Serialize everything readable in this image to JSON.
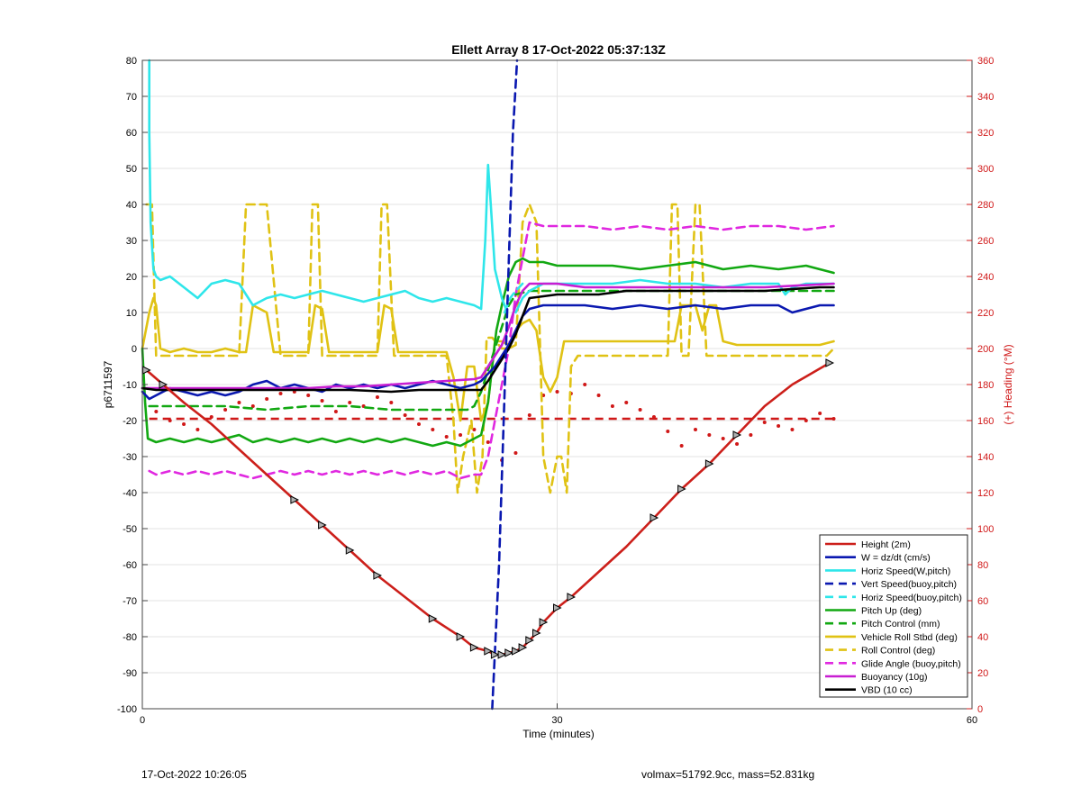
{
  "chart_data": {
    "type": "line",
    "title": "Ellett Array 8 17-Oct-2022 05:37:13Z",
    "xlabel": "Time (minutes)",
    "ylabel_left": "p6711597",
    "ylabel_right": "(+) Heading (°M)",
    "xlim": [
      0,
      60
    ],
    "ylim_left": [
      -100,
      80
    ],
    "ylim_right": [
      0,
      360
    ],
    "xticks": [
      0,
      30,
      60
    ],
    "yticks_left": [
      -100,
      -90,
      -80,
      -70,
      -60,
      -50,
      -40,
      -30,
      -20,
      -10,
      0,
      10,
      20,
      30,
      40,
      50,
      60,
      70,
      80
    ],
    "yticks_right": [
      0,
      20,
      40,
      60,
      80,
      100,
      120,
      140,
      160,
      180,
      200,
      220,
      240,
      260,
      280,
      300,
      320,
      340,
      360
    ],
    "grid_x": [
      30
    ],
    "grid_y": "major",
    "legend_position": "bottom-right",
    "colors": {
      "height": "#cc1f1a",
      "w": "#0a18b0",
      "horiz": "#2fe6ea",
      "pitch": "#12a812",
      "roll": "#e0c214",
      "glide": "#e028e0",
      "buoy": "#c81ed2",
      "vbd": "#000000",
      "heading": "#d01818",
      "right_axis": "#d01818"
    },
    "series": [
      {
        "name": "Height (2m)",
        "key": "height",
        "style": "solid",
        "markers": "triangle",
        "x": [
          0.3,
          1.5,
          3,
          5,
          7,
          9,
          11,
          13,
          15,
          17,
          19,
          21,
          23,
          24,
          25,
          25.5,
          26,
          26.5,
          27,
          27.5,
          28,
          28.5,
          29,
          30,
          31,
          33,
          35,
          37,
          39,
          41,
          43,
          45,
          47,
          49.7
        ],
        "y": [
          -6,
          -10,
          -15,
          -21,
          -28,
          -35,
          -42,
          -49,
          -56,
          -63,
          -69,
          -75,
          -80,
          -83,
          -84,
          -85,
          -85,
          -84.5,
          -84,
          -83,
          -81,
          -79,
          -76,
          -72,
          -69,
          -62,
          -55,
          -47,
          -39,
          -32,
          -24,
          -16,
          -10,
          -4
        ]
      },
      {
        "name": "W = dz/dt (cm/s)",
        "key": "w",
        "style": "solid",
        "x": [
          0,
          0.5,
          1,
          2,
          3,
          4,
          5,
          6,
          7,
          8,
          9,
          10,
          11,
          12,
          13,
          14,
          15,
          16,
          17,
          18,
          19,
          20,
          21,
          22,
          23,
          24,
          24.5,
          25,
          25.5,
          26,
          26.5,
          27,
          27.5,
          28,
          29,
          30,
          32,
          34,
          36,
          38,
          40,
          42,
          44,
          46,
          47,
          48,
          49,
          50
        ],
        "y": [
          -12,
          -14,
          -13,
          -11,
          -12,
          -13,
          -12,
          -13,
          -12,
          -10,
          -9,
          -11,
          -10,
          -11,
          -12,
          -10,
          -11,
          -10,
          -11,
          -10,
          -11,
          -10,
          -9,
          -10,
          -11,
          -10,
          -9,
          -7,
          -5,
          -2,
          1,
          5,
          9,
          11,
          12,
          12,
          12,
          11,
          12,
          11,
          12,
          11,
          12,
          12,
          10,
          11,
          12,
          12
        ]
      },
      {
        "name": "Horiz Speed(W,pitch)",
        "key": "horiz",
        "style": "solid",
        "x": [
          0.5,
          0.5,
          0.6,
          0.8,
          1,
          1.3,
          2,
          3,
          4,
          5,
          6,
          7,
          8,
          9,
          10,
          11,
          12,
          13,
          14,
          15,
          16,
          17,
          18,
          19,
          20,
          21,
          22,
          23,
          24,
          24.5,
          24.8,
          25,
          25.2,
          25.5,
          26,
          26.3
        ],
        "y": [
          80,
          60,
          35,
          22,
          20,
          19,
          20,
          17,
          14,
          18,
          19,
          18,
          12,
          14,
          15,
          14,
          15,
          16,
          15,
          14,
          13,
          14,
          15,
          16,
          14,
          13,
          14,
          13,
          12,
          11,
          30,
          51,
          40,
          22,
          14,
          11
        ],
        "seg2_x": [
          27,
          27.5,
          28,
          29,
          30,
          32,
          34,
          36,
          38,
          40,
          42,
          44,
          45,
          46,
          46.5,
          47,
          48,
          49,
          50
        ],
        "seg2_y": [
          10,
          14,
          16,
          18,
          18,
          18,
          18,
          19,
          18,
          18,
          17,
          18,
          18,
          18,
          15,
          17,
          18,
          18,
          18
        ]
      },
      {
        "name": "Vert Speed(buoy,pitch)",
        "key": "w",
        "style": "dashed",
        "x": [
          25.3,
          25.8,
          26.3,
          26.8,
          27.1
        ],
        "y": [
          -100,
          -60,
          0,
          60,
          80
        ]
      },
      {
        "name": "Horiz Speed(buoy,pitch)",
        "key": "horiz",
        "style": "dashed",
        "x": [
          26.2,
          26.6,
          27,
          27.5
        ],
        "y": [
          10,
          14,
          16,
          18
        ]
      },
      {
        "name": "Pitch Up (deg)",
        "key": "pitch",
        "style": "solid",
        "x": [
          0,
          0.2,
          0.4,
          1,
          2,
          3,
          4,
          5,
          6,
          7,
          8,
          9,
          10,
          11,
          12,
          13,
          14,
          15,
          16,
          17,
          18,
          19,
          20,
          21,
          22,
          23,
          24,
          24.5,
          25,
          25.3,
          25.6,
          26,
          26.5,
          27,
          27.5,
          28,
          29,
          30,
          32,
          34,
          36,
          38,
          40,
          42,
          44,
          46,
          48,
          49,
          50
        ],
        "y": [
          0,
          -15,
          -25,
          -26,
          -25,
          -26,
          -25,
          -26,
          -25,
          -24,
          -26,
          -25,
          -26,
          -25,
          -26,
          -25,
          -26,
          -25,
          -26,
          -25,
          -26,
          -25,
          -26,
          -27,
          -26,
          -27,
          -25,
          -24,
          -15,
          -5,
          5,
          12,
          20,
          24,
          25,
          24,
          24,
          23,
          23,
          23,
          22,
          23,
          24,
          22,
          23,
          22,
          23,
          22,
          21
        ]
      },
      {
        "name": "Pitch Control (mm)",
        "key": "pitch",
        "style": "dashed",
        "x": [
          0.5,
          3,
          6,
          9,
          12,
          15,
          18,
          21,
          23.5,
          24,
          24.5,
          25,
          25.5,
          26,
          26.5,
          27,
          28,
          30,
          35,
          40,
          45,
          50
        ],
        "y": [
          -16,
          -16,
          -16,
          -17,
          -16,
          -16,
          -17,
          -17,
          -17,
          -16,
          -12,
          -6,
          0,
          6,
          12,
          15,
          16,
          16,
          16,
          16,
          16,
          16
        ]
      },
      {
        "name": "Vehicle Roll Stbd (deg)",
        "key": "roll",
        "style": "solid",
        "x": [
          0,
          0.5,
          0.8,
          1,
          1.3,
          2,
          3,
          4,
          5,
          6,
          7,
          7.5,
          8,
          8.5,
          9,
          9.5,
          10,
          10.5,
          11,
          12,
          12.5,
          13,
          13.5,
          14,
          15,
          16,
          17,
          17.5,
          18,
          18.5,
          19,
          20,
          21,
          22,
          22.5,
          23,
          23.5,
          24,
          24.5,
          25,
          25.5,
          26,
          26.5,
          27,
          27.5,
          28,
          28.5,
          29,
          29.5,
          30,
          30.5,
          31,
          32,
          34,
          36,
          38,
          38.5,
          39,
          39.5,
          40,
          40.5,
          41,
          41.5,
          42,
          43,
          45,
          47,
          49,
          50
        ],
        "y": [
          0,
          10,
          14,
          12,
          0,
          -1,
          0,
          -1,
          -1,
          0,
          -1,
          -1,
          12,
          11,
          10,
          -1,
          -1,
          -1,
          -1,
          -1,
          12,
          11,
          -1,
          -1,
          -1,
          -1,
          -1,
          12,
          11,
          -1,
          -1,
          -1,
          -1,
          -1,
          -8,
          -20,
          -5,
          -5,
          -20,
          -15,
          2,
          2,
          1,
          5,
          7,
          8,
          5,
          -8,
          -12,
          -8,
          2,
          2,
          2,
          2,
          2,
          2,
          2,
          12,
          12,
          12,
          5,
          12,
          12,
          2,
          1,
          1,
          1,
          1,
          2
        ]
      },
      {
        "name": "Roll Control (deg)",
        "key": "roll",
        "style": "dashed",
        "x": [
          0.3,
          0.7,
          1,
          1.3,
          1.7,
          2,
          5,
          7,
          7.5,
          8,
          9,
          10,
          11,
          12,
          12.3,
          12.7,
          13,
          15,
          17,
          17.3,
          17.7,
          18.2,
          19,
          21,
          22,
          22.5,
          22.8,
          23.2,
          23.8,
          24.2,
          24.6,
          24.9,
          25.3,
          26,
          26.5,
          27,
          27.5,
          28,
          28.5,
          29,
          29.5,
          30,
          30.3,
          30.7,
          31,
          31.5,
          32,
          35,
          38,
          38.3,
          38.7,
          39,
          39.5,
          40,
          40.3,
          40.8,
          41.2,
          41.5,
          42,
          45,
          48,
          49.5,
          50
        ],
        "y": [
          40,
          40,
          -2,
          -2,
          -2,
          -2,
          -2,
          -2,
          40,
          40,
          40,
          -2,
          -2,
          -2,
          40,
          40,
          -2,
          -2,
          -2,
          40,
          40,
          -2,
          -2,
          -2,
          -2,
          -20,
          -40,
          -30,
          -20,
          -40,
          -30,
          3,
          3,
          0,
          0,
          1,
          35,
          40,
          35,
          -30,
          -40,
          -30,
          -30,
          -40,
          -5,
          -2,
          -2,
          -2,
          -2,
          40,
          40,
          -2,
          -2,
          40,
          40,
          -2,
          -2,
          -2,
          -2,
          -2,
          -2,
          -2,
          0
        ]
      },
      {
        "name": "Glide Angle (buoy,pitch)",
        "key": "glide",
        "style": "dashed",
        "x": [
          0.5,
          1,
          2,
          3,
          4,
          5,
          6,
          7,
          8,
          9,
          10,
          11,
          12,
          13,
          14,
          15,
          16,
          17,
          18,
          19,
          20,
          21,
          22,
          23,
          24,
          24.5,
          25,
          25.5,
          26,
          26.5,
          27,
          27.5,
          28,
          29,
          30,
          32,
          34,
          36,
          38,
          40,
          42,
          44,
          46,
          48,
          50
        ],
        "y": [
          -34,
          -35,
          -34,
          -35,
          -34,
          -35,
          -34,
          -35,
          -36,
          -35,
          -34,
          -35,
          -34,
          -35,
          -34,
          -35,
          -34,
          -35,
          -34,
          -35,
          -34,
          -35,
          -34,
          -36,
          -35,
          -35,
          -30,
          -20,
          -10,
          0,
          15,
          25,
          35,
          34,
          34,
          34,
          33,
          34,
          33,
          34,
          33,
          34,
          34,
          33,
          34
        ]
      },
      {
        "name": "Buoyancy (10g)",
        "key": "buoy",
        "style": "solid",
        "x": [
          0,
          2,
          4,
          6,
          8,
          10,
          12,
          14,
          16,
          18,
          20,
          22,
          24,
          24.5,
          25,
          25.5,
          26,
          26.5,
          27,
          27.5,
          28,
          29,
          30,
          32,
          35,
          40,
          45,
          50
        ],
        "y": [
          -11,
          -11,
          -11,
          -11,
          -11,
          -11,
          -11,
          -10.5,
          -10.5,
          -10,
          -9.5,
          -9,
          -8.5,
          -8,
          -5,
          -2,
          1,
          6,
          12,
          16,
          18,
          18,
          18,
          17,
          17,
          17,
          17,
          18
        ]
      },
      {
        "name": "VBD (10 cc)",
        "key": "vbd",
        "style": "solid",
        "x": [
          0,
          1,
          5,
          10,
          15,
          18,
          20,
          24,
          24.5,
          25,
          25.5,
          26,
          26.5,
          27,
          27.5,
          28,
          30,
          33,
          35,
          40,
          45,
          49,
          50
        ],
        "y": [
          -11,
          -11.5,
          -11.5,
          -11.5,
          -11.5,
          -12,
          -11.5,
          -11.5,
          -11.5,
          -9,
          -6,
          -3,
          0,
          4,
          9,
          14,
          15,
          15,
          16,
          16,
          16,
          17,
          17
        ]
      }
    ],
    "heading_series": {
      "name": "Heading (°M)",
      "key": "heading",
      "style": "dotted",
      "x": [
        1,
        2,
        3,
        4,
        5,
        6,
        7,
        8,
        9,
        10,
        11,
        12,
        13,
        14,
        15,
        16,
        17,
        18,
        19,
        20,
        21,
        22,
        23,
        24,
        25,
        26,
        27,
        28,
        29,
        30,
        31,
        32,
        33,
        34,
        35,
        36,
        37,
        38,
        39,
        40,
        41,
        42,
        43,
        44,
        45,
        46,
        47,
        48,
        49,
        50
      ],
      "y": [
        165,
        160,
        158,
        155,
        162,
        166,
        170,
        168,
        172,
        175,
        176,
        174,
        171,
        165,
        170,
        168,
        173,
        170,
        163,
        158,
        155,
        151,
        152,
        155,
        148,
        138,
        142,
        163,
        174,
        176,
        175,
        180,
        174,
        168,
        170,
        166,
        162,
        154,
        146,
        155,
        152,
        150,
        147,
        152,
        159,
        157,
        155,
        160,
        164,
        161
      ]
    },
    "heading_reference": {
      "key": "heading",
      "style": "dashed",
      "value": 161
    },
    "footer_left": "17-Oct-2022 10:26:05",
    "footer_right": "volmax=51792.9cc, mass=52.831kg"
  }
}
